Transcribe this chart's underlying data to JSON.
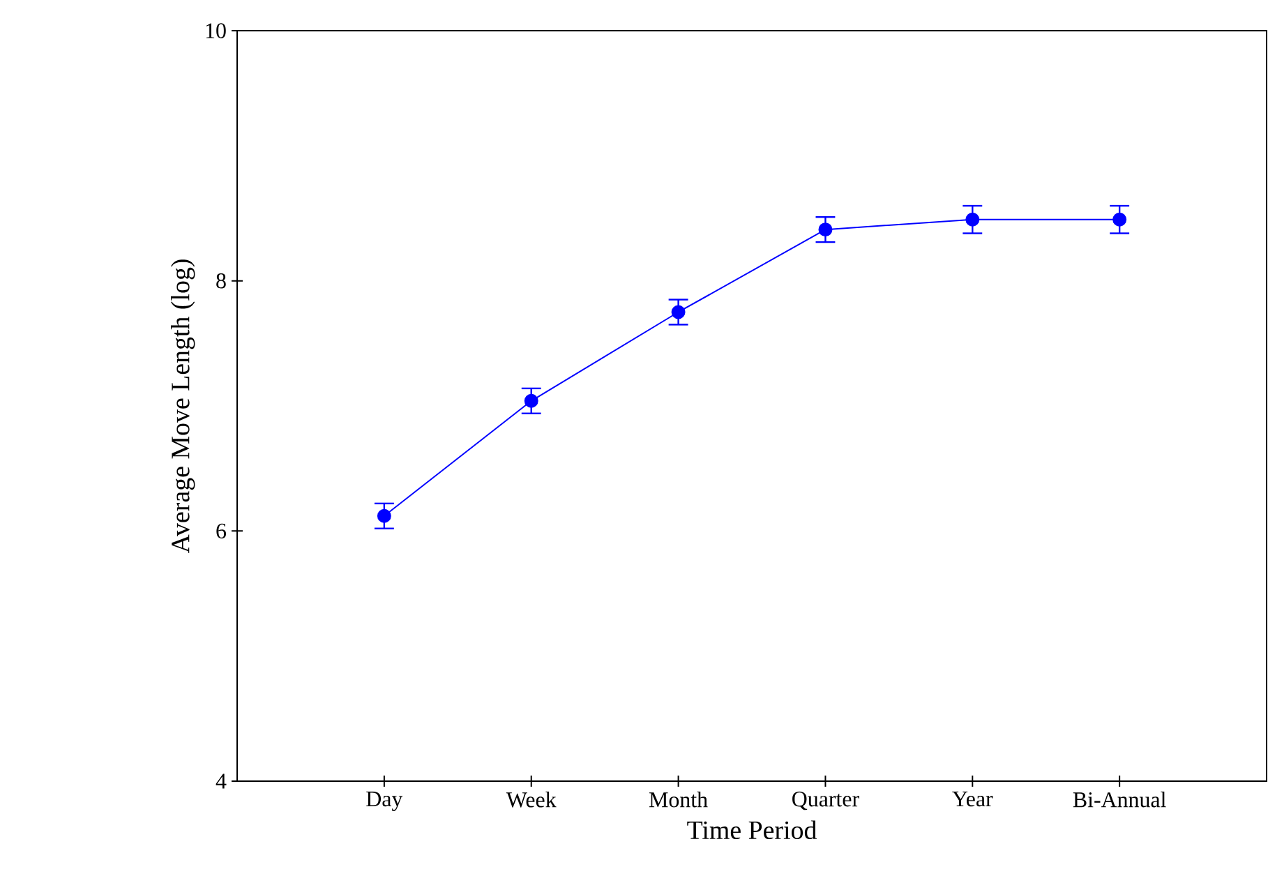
{
  "chart_data": {
    "type": "line",
    "xlabel": "Time Period",
    "ylabel": "Average Move Length (log)",
    "categories": [
      "Day",
      "Week",
      "Month",
      "Quarter",
      "Year",
      "Bi-Annual"
    ],
    "series": [
      {
        "color": "#0000ff",
        "values": [
          6.12,
          7.04,
          7.75,
          8.41,
          8.49,
          8.49
        ],
        "errors": [
          0.1,
          0.1,
          0.1,
          0.1,
          0.11,
          0.11
        ]
      }
    ],
    "ylim": [
      4,
      10
    ],
    "yticks": [
      4,
      6,
      8,
      10
    ],
    "marker": "circle",
    "line_style": "solid",
    "grid": false
  }
}
